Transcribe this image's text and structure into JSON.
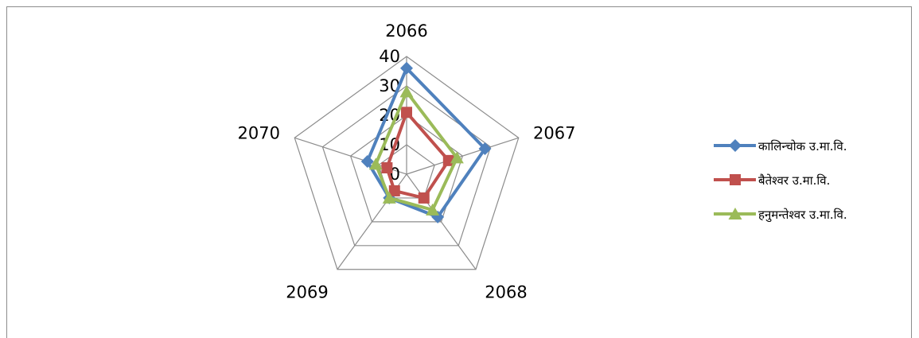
{
  "chart_data": {
    "type": "radar",
    "categories": [
      "2066",
      "2067",
      "2068",
      "2069",
      "2070"
    ],
    "rlim": [
      0,
      40
    ],
    "ticks": [
      "0",
      "10",
      "20",
      "30",
      "40"
    ],
    "grid": true,
    "legend_position": "right",
    "series": [
      {
        "name": "कालिन्चोक उ.मा.वि.",
        "color": "#4f81bd",
        "marker": "diamond",
        "values": [
          36,
          28,
          18,
          10,
          14
        ]
      },
      {
        "name": "बैतेश्वर उ.मा.वि.",
        "color": "#c0504d",
        "marker": "square",
        "values": [
          21,
          15,
          10,
          7,
          7
        ]
      },
      {
        "name": "हनुमन्तेश्वर उ.मा.वि.",
        "color": "#9bbb59",
        "marker": "triangle",
        "values": [
          28,
          18,
          15,
          10,
          11
        ]
      }
    ]
  }
}
